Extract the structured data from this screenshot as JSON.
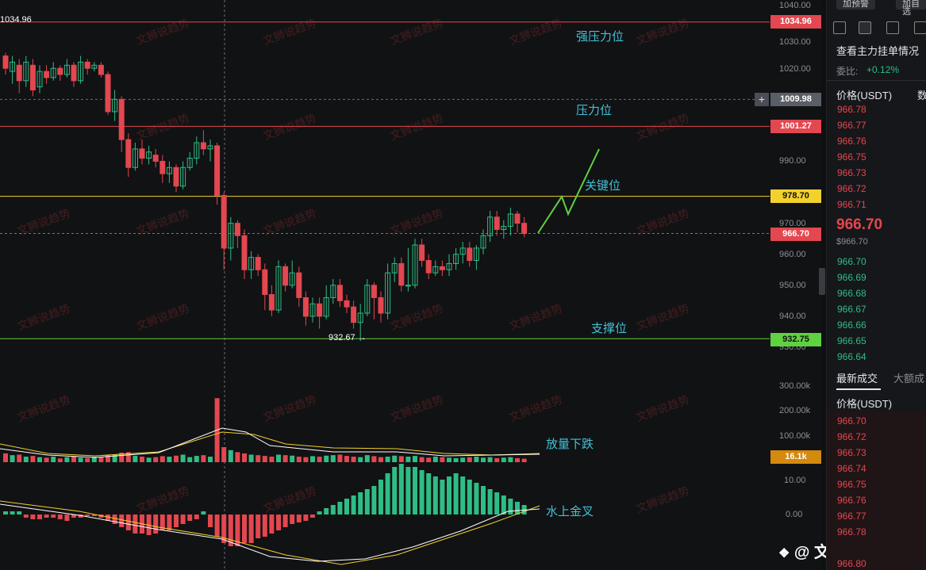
{
  "price_axis": {
    "labels": [
      "1040.00",
      "1030.00",
      "1020.00",
      "990.00",
      "970.00",
      "960.00",
      "950.00",
      "940.00",
      "930.00"
    ],
    "label_values": [
      1040,
      1030,
      1020,
      990,
      970,
      960,
      950,
      940,
      930
    ]
  },
  "volume_axis": {
    "labels": [
      "300.00k",
      "200.00k",
      "100.00k"
    ],
    "label_values": [
      300,
      200,
      100
    ]
  },
  "macd_axis": {
    "labels": [
      "10.00",
      "0.00"
    ]
  },
  "price_tags": {
    "top_left": "1034.96",
    "strong_resistance": "1034.96",
    "crosshair": "1009.98",
    "resistance": "1001.27",
    "key": "978.70",
    "current": "966.70",
    "support": "932.75",
    "low_marker": "932.67",
    "volume": "16.1k"
  },
  "annotations": {
    "strong_resistance": "强压力位",
    "resistance": "压力位",
    "key_level": "关键位",
    "support": "支撑位",
    "volume_note": "放量下跌",
    "macd_note": "水上金叉"
  },
  "watermark": "文狮说趋势",
  "footer": "@ 文狮说趋势",
  "colors": {
    "up": "#2ebd85",
    "down": "#e3474f",
    "strong_line": "#e3474f",
    "key_line": "#f2d12d",
    "support_line": "#5ed23f",
    "annotation": "#43c1d6"
  },
  "right_panel": {
    "top_buttons": [
      "加预警",
      "加自选"
    ],
    "order_book_title": "查看主力挂单情况",
    "ratio_label": "委比:",
    "ratio_value": "+0.12%",
    "col_price": "价格(USDT)",
    "col_qty": "数",
    "asks": [
      "966.78",
      "966.77",
      "966.76",
      "966.75",
      "966.73",
      "966.72",
      "966.71"
    ],
    "last_price": "966.70",
    "last_price_usd": "$966.70",
    "bids": [
      "966.70",
      "966.69",
      "966.68",
      "966.67",
      "966.66",
      "966.65",
      "966.64"
    ],
    "trades_tab": "最新成交",
    "big_trades_tab": "大额成",
    "trades_col_price": "价格(USDT)",
    "trades": [
      "966.70",
      "966.72",
      "966.73",
      "966.74",
      "966.75",
      "966.76",
      "966.77",
      "966.78",
      "966.80"
    ]
  }
}
